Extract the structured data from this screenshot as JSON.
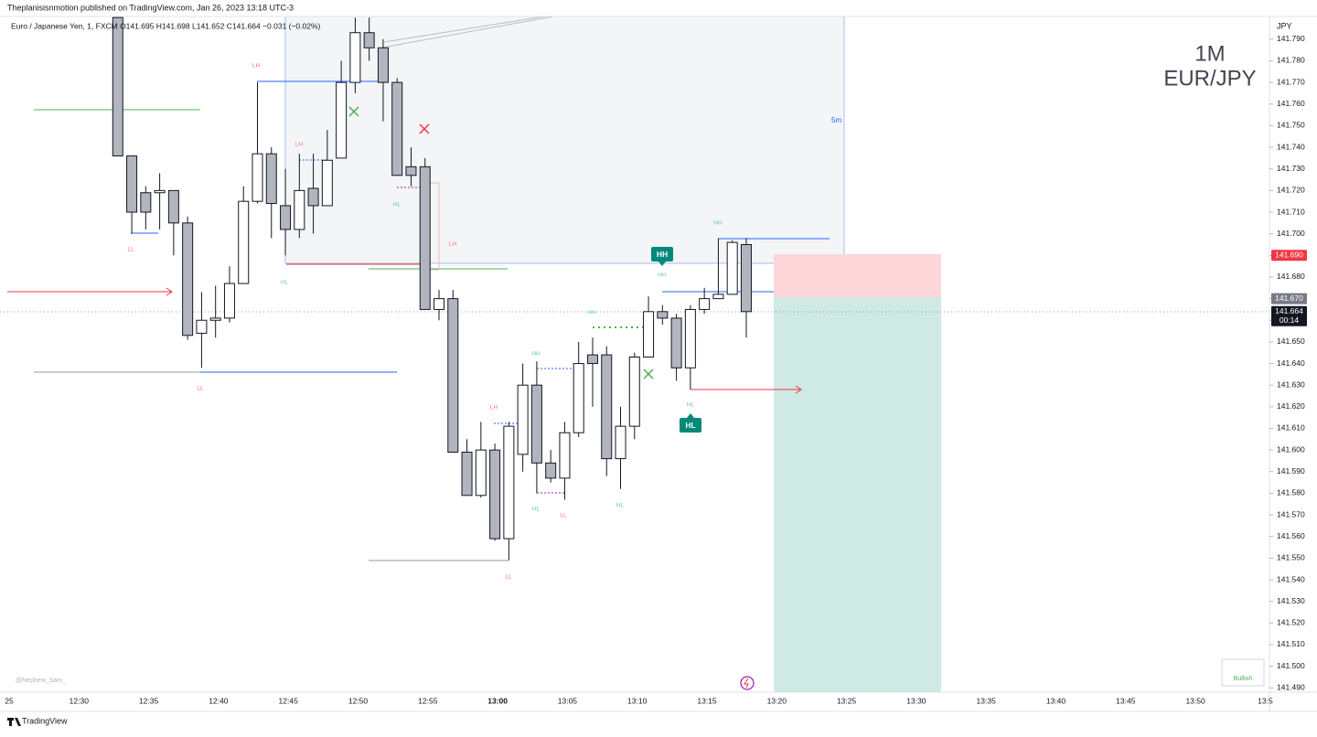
{
  "chart_data": {
    "type": "candlestick",
    "header": "Theplanisisnmotion published on TradingView.com, Jan 26, 2023 13:18 UTC-3",
    "legend": "Euro / Japanese Yen, 1, FXCM  O141.695  H141.698  L141.652  C141.664  −0.031 (−0.02%)",
    "watermark_top": "1M",
    "watermark_bottom": "EUR/JPY",
    "currency": "JPY",
    "box_label": "5m",
    "x": [
      "12:33",
      "12:34",
      "12:35",
      "12:36",
      "12:37",
      "12:38",
      "12:39",
      "12:40",
      "12:41",
      "12:42",
      "12:43",
      "12:44",
      "12:45",
      "12:46",
      "12:47",
      "12:48",
      "12:49",
      "12:50",
      "12:51",
      "12:52",
      "12:53",
      "12:54",
      "12:55",
      "12:56",
      "12:57",
      "12:58",
      "12:59",
      "13:00",
      "13:01",
      "13:02",
      "13:03",
      "13:04",
      "13:05",
      "13:06",
      "13:07",
      "13:08",
      "13:09",
      "13:10",
      "13:11",
      "13:12",
      "13:13",
      "13:14",
      "13:15",
      "13:16",
      "13:17",
      "13:18"
    ],
    "open": [
      141.8,
      141.736,
      141.719,
      141.719,
      141.72,
      141.705,
      141.654,
      141.66,
      141.661,
      141.677,
      141.715,
      141.737,
      141.713,
      141.702,
      141.721,
      141.713,
      141.735,
      141.77,
      141.793,
      141.786,
      141.77,
      141.731,
      141.731,
      141.665,
      141.67,
      141.599,
      141.579,
      141.6,
      141.559,
      141.598,
      141.63,
      141.594,
      141.587,
      141.608,
      141.644,
      141.644,
      141.596,
      141.611,
      141.643,
      141.664,
      141.661,
      141.638,
      141.665,
      141.67,
      141.672,
      141.695
    ],
    "high": [
      141.8,
      141.736,
      141.722,
      141.728,
      141.72,
      141.708,
      141.673,
      141.676,
      141.685,
      141.722,
      141.77,
      141.74,
      141.73,
      141.737,
      141.737,
      141.748,
      141.78,
      141.8,
      141.8,
      141.79,
      141.772,
      141.74,
      141.735,
      141.674,
      141.674,
      141.605,
      141.613,
      141.603,
      141.613,
      141.64,
      141.641,
      141.6,
      141.613,
      141.65,
      141.652,
      141.648,
      141.62,
      141.645,
      141.671,
      141.667,
      141.663,
      141.667,
      141.675,
      141.698,
      141.697,
      141.698
    ],
    "low": [
      141.736,
      141.7,
      141.702,
      141.702,
      141.69,
      141.651,
      141.638,
      141.652,
      141.659,
      141.677,
      141.714,
      141.698,
      141.69,
      141.698,
      141.7,
      141.713,
      141.735,
      141.765,
      141.78,
      141.752,
      141.727,
      141.722,
      141.665,
      141.66,
      141.599,
      141.579,
      141.578,
      141.558,
      141.549,
      141.59,
      141.58,
      141.585,
      141.577,
      141.606,
      141.62,
      141.588,
      141.582,
      141.605,
      141.643,
      141.658,
      141.632,
      141.628,
      141.663,
      141.67,
      141.672,
      141.652
    ],
    "close": [
      141.736,
      141.71,
      141.71,
      141.72,
      141.705,
      141.653,
      141.66,
      141.661,
      141.677,
      141.715,
      141.737,
      141.714,
      141.702,
      141.72,
      141.713,
      141.734,
      141.77,
      141.793,
      141.786,
      141.77,
      141.727,
      141.727,
      141.665,
      141.67,
      141.599,
      141.579,
      141.6,
      141.559,
      141.611,
      141.63,
      141.594,
      141.587,
      141.608,
      141.64,
      141.64,
      141.596,
      141.611,
      141.643,
      141.664,
      141.661,
      141.638,
      141.665,
      141.67,
      141.672,
      141.696,
      141.664
    ],
    "up_color": "#ffffff",
    "down_color": "#b2b5be",
    "ylim": [
      141.488,
      141.8005
    ],
    "yticks": [
      {
        "value": 141.49,
        "label": "141.490"
      },
      {
        "value": 141.5,
        "label": "141.500"
      },
      {
        "value": 141.51,
        "label": "141.510"
      },
      {
        "value": 141.52,
        "label": "141.520"
      },
      {
        "value": 141.53,
        "label": "141.530"
      },
      {
        "value": 141.54,
        "label": "141.540"
      },
      {
        "value": 141.55,
        "label": "141.550"
      },
      {
        "value": 141.56,
        "label": "141.560"
      },
      {
        "value": 141.57,
        "label": "141.570"
      },
      {
        "value": 141.58,
        "label": "141.580"
      },
      {
        "value": 141.59,
        "label": "141.590"
      },
      {
        "value": 141.6,
        "label": "141.600"
      },
      {
        "value": 141.61,
        "label": "141.610"
      },
      {
        "value": 141.62,
        "label": "141.620"
      },
      {
        "value": 141.63,
        "label": "141.630"
      },
      {
        "value": 141.64,
        "label": "141.640"
      },
      {
        "value": 141.65,
        "label": "141.650"
      },
      {
        "value": 141.66,
        "label": "141.660"
      },
      {
        "value": 141.67,
        "label": "141.670"
      },
      {
        "value": 141.68,
        "label": "141.680"
      },
      {
        "value": 141.69,
        "label": "141.690"
      },
      {
        "value": 141.7,
        "label": "141.700"
      },
      {
        "value": 141.71,
        "label": "141.710"
      },
      {
        "value": 141.72,
        "label": "141.720"
      },
      {
        "value": 141.73,
        "label": "141.730"
      },
      {
        "value": 141.74,
        "label": "141.740"
      },
      {
        "value": 141.75,
        "label": "141.750"
      },
      {
        "value": 141.76,
        "label": "141.760"
      },
      {
        "value": 141.77,
        "label": "141.770"
      },
      {
        "value": 141.78,
        "label": "141.780"
      },
      {
        "value": 141.79,
        "label": "141.790"
      }
    ],
    "xticks": [
      "25",
      "12:30",
      "12:35",
      "12:40",
      "12:45",
      "12:50",
      "12:55",
      "13:00",
      "13:05",
      "13:10",
      "13:15",
      "13:20",
      "13:25",
      "13:30",
      "13:35",
      "13:40",
      "13:45",
      "13:50",
      "13:5"
    ],
    "price_labels": [
      {
        "value": 141.69,
        "label": "141.690",
        "color": "#f23645"
      },
      {
        "value": 141.67,
        "label": "141.670",
        "color": "#787b86"
      },
      {
        "value": 141.664,
        "label": "141.664",
        "color": "#131722"
      }
    ],
    "countdown": "00:14",
    "annotations": [
      "LH",
      "LH",
      "LL",
      "HL",
      "HL",
      "LH",
      "LL",
      "HH",
      "LH",
      "HL",
      "LL",
      "HL",
      "LL",
      "HH",
      "HH",
      "HH",
      "HL"
    ],
    "badges": [
      "HH",
      "HL"
    ],
    "author": "@Nephew_Sam_",
    "status": "Bullish",
    "brand": "TradingView"
  }
}
